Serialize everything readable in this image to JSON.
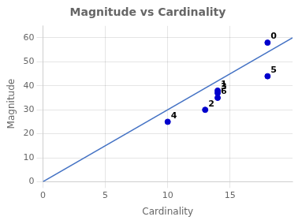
{
  "chart_data": {
    "type": "scatter",
    "title": "Magnitude vs Cardinality",
    "xlabel": "Cardinality",
    "ylabel": "Magnitude",
    "series": [
      {
        "type": "line",
        "color": "#4472c4",
        "x": [
          0,
          20
        ],
        "values": [
          0,
          60
        ]
      },
      {
        "type": "scatter",
        "color": "#0000cc",
        "x": [
          18,
          14,
          13,
          14,
          10,
          18,
          14
        ],
        "values": [
          58,
          38,
          30,
          37,
          25,
          44,
          35
        ]
      }
    ],
    "annotations": [
      {
        "text": "0",
        "x": 18,
        "y": 58
      },
      {
        "text": "1",
        "x": 14,
        "y": 38
      },
      {
        "text": "2",
        "x": 13,
        "y": 30
      },
      {
        "text": "3",
        "x": 14,
        "y": 37
      },
      {
        "text": "4",
        "x": 10,
        "y": 25
      },
      {
        "text": "5",
        "x": 18,
        "y": 44
      },
      {
        "text": "6",
        "x": 14,
        "y": 35
      }
    ],
    "xlim": [
      0,
      20
    ],
    "ylim": [
      0,
      65
    ],
    "xticks": [
      0,
      5,
      10,
      15
    ],
    "yticks": [
      0,
      10,
      20,
      30,
      40,
      50,
      60
    ],
    "grid": true
  }
}
